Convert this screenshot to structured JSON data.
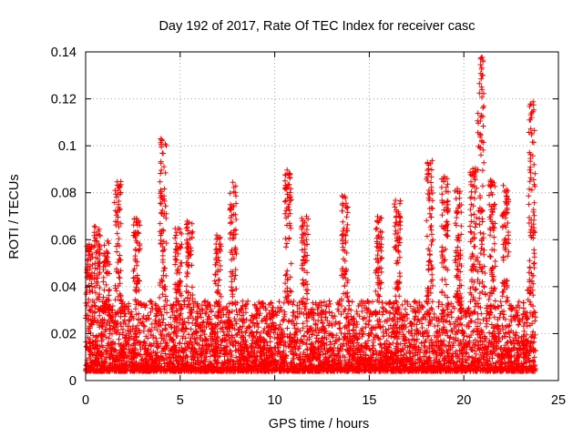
{
  "chart_data": {
    "type": "scatter",
    "title": "Day 192 of 2017, Rate Of TEC Index for receiver casc",
    "xlabel": "GPS time / hours",
    "ylabel": "ROTI / TECUs",
    "xlim": [
      0,
      25
    ],
    "ylim": [
      0,
      0.14
    ],
    "xticks": [
      "0",
      "5",
      "10",
      "15",
      "20",
      "25"
    ],
    "yticks": [
      "0",
      "0.02",
      "0.04",
      "0.06",
      "0.08",
      "0.1",
      "0.12",
      "0.14"
    ],
    "grid": true,
    "marker": "+",
    "series_color": "#ff0000",
    "note_points": "dense cloud of '+' markers, base level 0.005-0.03 TECU with spikes to ~0.14",
    "x_range_of_data": [
      0,
      23.8
    ],
    "peaks": [
      {
        "x": 0.2,
        "y": 0.058
      },
      {
        "x": 0.6,
        "y": 0.066
      },
      {
        "x": 1.1,
        "y": 0.06
      },
      {
        "x": 1.7,
        "y": 0.085
      },
      {
        "x": 2.7,
        "y": 0.07
      },
      {
        "x": 4.1,
        "y": 0.103
      },
      {
        "x": 4.9,
        "y": 0.065
      },
      {
        "x": 5.5,
        "y": 0.068
      },
      {
        "x": 7.0,
        "y": 0.062
      },
      {
        "x": 7.8,
        "y": 0.085
      },
      {
        "x": 10.7,
        "y": 0.091
      },
      {
        "x": 11.6,
        "y": 0.07
      },
      {
        "x": 13.7,
        "y": 0.079
      },
      {
        "x": 15.5,
        "y": 0.071
      },
      {
        "x": 16.5,
        "y": 0.077
      },
      {
        "x": 18.2,
        "y": 0.094
      },
      {
        "x": 19.0,
        "y": 0.088
      },
      {
        "x": 19.7,
        "y": 0.083
      },
      {
        "x": 20.5,
        "y": 0.091
      },
      {
        "x": 20.9,
        "y": 0.139
      },
      {
        "x": 21.5,
        "y": 0.087
      },
      {
        "x": 22.2,
        "y": 0.085
      },
      {
        "x": 23.6,
        "y": 0.121
      }
    ]
  }
}
